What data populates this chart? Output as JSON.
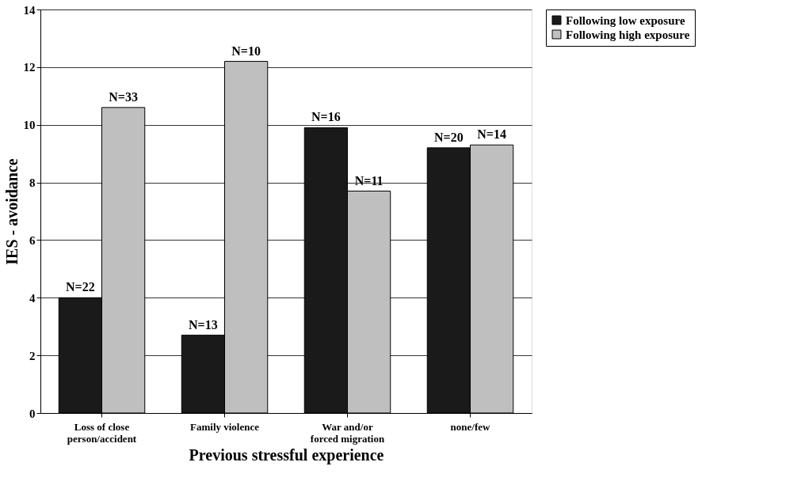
{
  "chart_data": {
    "type": "bar",
    "xlabel": "Previous stressful experience",
    "ylabel": "IES - avoidance",
    "categories": [
      "Loss of close\nperson/accident",
      "Family violence",
      "War and/or\nforced migration",
      "none/few"
    ],
    "series": [
      {
        "name": "Following low exposure",
        "color": "#1a1a1a",
        "values": [
          4.0,
          2.7,
          9.9,
          9.2
        ]
      },
      {
        "name": "Following high exposure",
        "color": "#bfbfbf",
        "values": [
          10.6,
          12.2,
          7.7,
          9.3
        ]
      }
    ],
    "annotations": [
      {
        "text": "N=22",
        "x": "Loss of close\nperson/accident",
        "y": 4.0
      },
      {
        "text": "N=13",
        "x": "Family violence",
        "y": 2.7
      },
      {
        "text": "N=16",
        "x": "War and/or\nforced migration",
        "y": 9.9
      },
      {
        "text": "N=20",
        "x": "none/few",
        "y": 9.2
      },
      {
        "text": "N=33",
        "x": "Loss of close\nperson/accident",
        "y": 10.6
      },
      {
        "text": "N=10",
        "x": "Family violence",
        "y": 12.2
      },
      {
        "text": "N=11",
        "x": "War and/or\nforced migration",
        "y": 7.7
      },
      {
        "text": "N=14",
        "x": "none/few",
        "y": 9.3
      }
    ],
    "ylim": [
      0,
      14
    ],
    "yticks": [
      0,
      2,
      4,
      6,
      8,
      10,
      12,
      14
    ],
    "grid": "y",
    "legend": "top right"
  }
}
